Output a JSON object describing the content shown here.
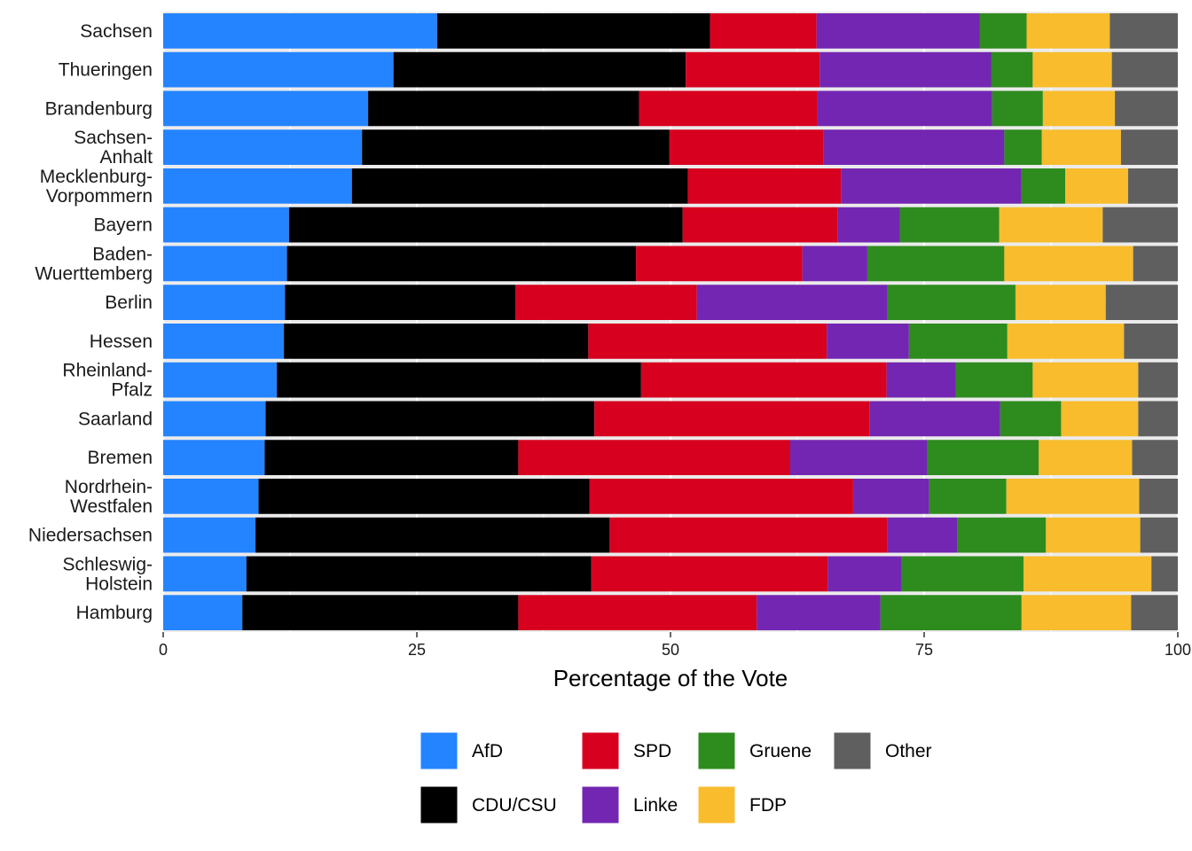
{
  "chart_data": {
    "type": "bar",
    "orientation": "horizontal",
    "stacked": true,
    "xlabel": "Percentage of the Vote",
    "ylabel": "",
    "xlim": [
      0,
      100
    ],
    "x_ticks": [
      "0",
      "25",
      "50",
      "75",
      "100"
    ],
    "grid": true,
    "legend_position": "bottom",
    "categories": [
      "Sachsen",
      "Thueringen",
      "Brandenburg",
      "Sachsen-\nAnhalt",
      "Mecklenburg-\nVorpommern",
      "Bayern",
      "Baden-\nWuerttemberg",
      "Berlin",
      "Hessen",
      "Rheinland-\nPfalz",
      "Saarland",
      "Bremen",
      "Nordrhein-\nWestfalen",
      "Niedersachsen",
      "Schleswig-\nHolstein",
      "Hamburg"
    ],
    "series": [
      {
        "name": "AfD",
        "color": "#2484FF",
        "values": [
          27.0,
          22.7,
          20.2,
          19.6,
          18.6,
          12.4,
          12.2,
          12.0,
          11.9,
          11.2,
          10.1,
          10.0,
          9.4,
          9.1,
          8.2,
          7.8
        ]
      },
      {
        "name": "CDU/CSU",
        "color": "#000000",
        "values": [
          26.9,
          28.8,
          26.7,
          30.3,
          33.1,
          38.8,
          34.4,
          22.7,
          30.0,
          35.9,
          32.4,
          25.0,
          32.6,
          34.9,
          34.0,
          27.2
        ]
      },
      {
        "name": "SPD",
        "color": "#D7001F",
        "values": [
          10.5,
          13.2,
          17.6,
          15.2,
          15.1,
          15.3,
          16.4,
          17.9,
          23.5,
          24.2,
          27.1,
          26.8,
          26.0,
          27.4,
          23.3,
          23.5
        ]
      },
      {
        "name": "Linke",
        "color": "#7326B2",
        "values": [
          16.1,
          16.9,
          17.2,
          17.8,
          17.8,
          6.1,
          6.4,
          18.8,
          8.1,
          6.8,
          12.9,
          13.5,
          7.5,
          6.9,
          7.3,
          12.2
        ]
      },
      {
        "name": "Gruene",
        "color": "#2E8B1E",
        "values": [
          4.6,
          4.1,
          5.0,
          3.7,
          4.3,
          9.8,
          13.5,
          12.6,
          9.7,
          7.6,
          6.0,
          11.0,
          7.6,
          8.7,
          12.0,
          13.9
        ]
      },
      {
        "name": "FDP",
        "color": "#F8BC2D",
        "values": [
          8.2,
          7.8,
          7.1,
          7.8,
          6.2,
          10.2,
          12.7,
          8.9,
          11.5,
          10.4,
          7.6,
          9.2,
          13.1,
          9.3,
          12.6,
          10.8
        ]
      },
      {
        "name": "Other",
        "color": "#5F5F5F",
        "values": [
          6.7,
          6.5,
          6.2,
          5.6,
          4.9,
          7.4,
          4.4,
          7.1,
          5.3,
          3.9,
          3.9,
          4.5,
          3.8,
          3.7,
          2.6,
          4.6
        ]
      }
    ]
  }
}
